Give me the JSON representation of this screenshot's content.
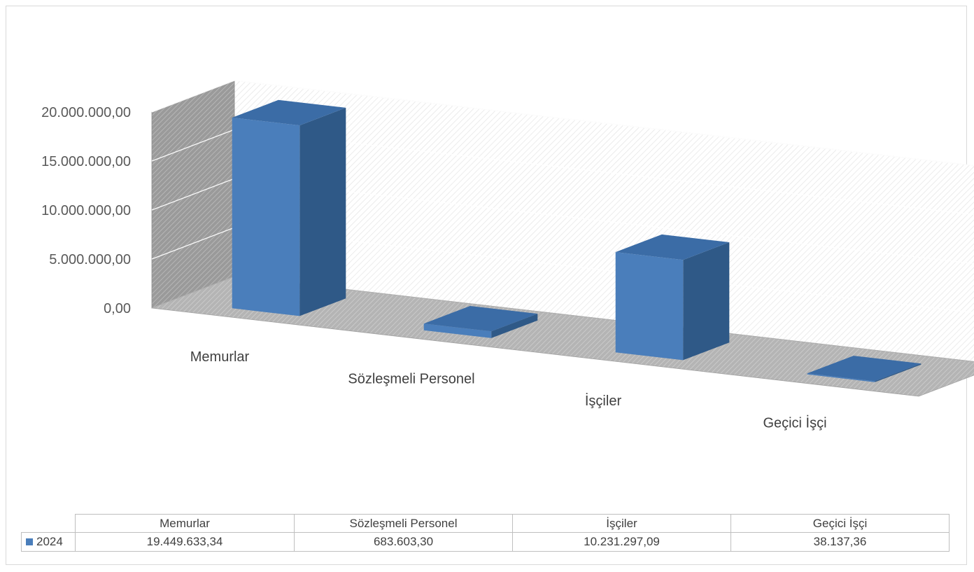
{
  "chart_data": {
    "type": "bar",
    "style": "3d-column",
    "categories": [
      "Memurlar",
      "Sözleşmeli Personel",
      "İşçiler",
      "Geçici İşçi"
    ],
    "series": [
      {
        "name": "2024",
        "values": [
          19449633.34,
          683603.3,
          10231297.09,
          38137.36
        ],
        "color": "#4a7ebb"
      }
    ],
    "ylim": [
      0,
      20000000
    ],
    "y_ticks": [
      "0,00",
      "5.000.000,00",
      "10.000.000,00",
      "15.000.000,00",
      "20.000.000,00"
    ],
    "grid": true,
    "legend": "data-table-bottom",
    "data_table": {
      "row_label": "2024",
      "cells": [
        "19.449.633,34",
        "683.603,30",
        "10.231.297,09",
        "38.137,36"
      ]
    },
    "colors": {
      "bar_front": "#4a7ebb",
      "bar_side": "#2f5987",
      "bar_top": "#3b6ca6",
      "back_wall": "#ffffff",
      "side_wall": "#a6a6a6",
      "floor": "#bfbfbf",
      "gridline": "#d9d9d9"
    }
  }
}
